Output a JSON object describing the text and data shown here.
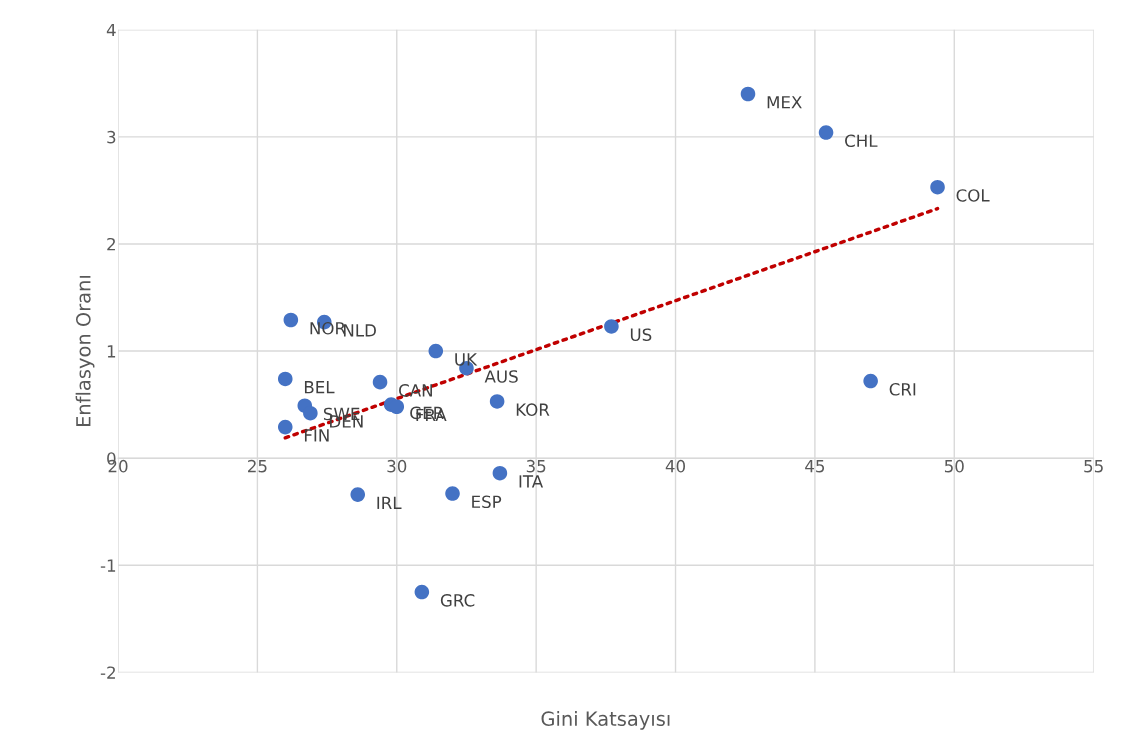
{
  "chart_data": {
    "type": "scatter",
    "xlabel": "Gini Katsayısı",
    "ylabel": "Enflasyon Oranı",
    "xlim": [
      20,
      55
    ],
    "xticks": [
      20,
      25,
      30,
      35,
      40,
      45,
      50,
      55
    ],
    "ylim": [
      -2,
      4
    ],
    "yticks": [
      -2,
      -1,
      0,
      1,
      2,
      3,
      4
    ],
    "grid": true,
    "marker": "circle",
    "series": [
      {
        "color": "#4472c4",
        "x": [
          42.6,
          45.4,
          49.4,
          37.7,
          47.0,
          26.2,
          27.4,
          31.4,
          32.5,
          26.0,
          29.4,
          33.6,
          29.8,
          30.0,
          26.7,
          26.9,
          26.0,
          33.7,
          28.6,
          32.0,
          30.9
        ],
        "values": [
          3.4,
          3.04,
          2.53,
          1.23,
          0.72,
          1.29,
          1.27,
          1.0,
          0.84,
          0.74,
          0.71,
          0.53,
          0.5,
          0.48,
          0.49,
          0.42,
          0.29,
          -0.14,
          -0.34,
          -0.33,
          -1.25
        ]
      },
      {
        "type": "line",
        "color": "#c00000",
        "line_style": "dotted",
        "marker": "none",
        "x": [
          26.0,
          49.4
        ],
        "values": [
          0.19,
          2.33
        ]
      }
    ],
    "annotations": [
      {
        "text": "MEX",
        "x": 42.6,
        "y": 3.4
      },
      {
        "text": "CHL",
        "x": 45.4,
        "y": 3.04
      },
      {
        "text": "COL",
        "x": 49.4,
        "y": 2.53
      },
      {
        "text": "US",
        "x": 37.7,
        "y": 1.23
      },
      {
        "text": "CRI",
        "x": 47.0,
        "y": 0.72
      },
      {
        "text": "NOR",
        "x": 26.2,
        "y": 1.29
      },
      {
        "text": "NLD",
        "x": 27.4,
        "y": 1.27
      },
      {
        "text": "UK",
        "x": 31.4,
        "y": 1.0
      },
      {
        "text": "AUS",
        "x": 32.5,
        "y": 0.84
      },
      {
        "text": "BEL",
        "x": 26.0,
        "y": 0.74
      },
      {
        "text": "CAN",
        "x": 29.4,
        "y": 0.71
      },
      {
        "text": "KOR",
        "x": 33.6,
        "y": 0.53
      },
      {
        "text": "GER",
        "x": 29.8,
        "y": 0.5
      },
      {
        "text": "FRA",
        "x": 30.0,
        "y": 0.48
      },
      {
        "text": "SWE",
        "x": 26.7,
        "y": 0.49
      },
      {
        "text": "DEN",
        "x": 26.9,
        "y": 0.42
      },
      {
        "text": "FIN",
        "x": 26.0,
        "y": 0.29
      },
      {
        "text": "ITA",
        "x": 33.7,
        "y": -0.14
      },
      {
        "text": "IRL",
        "x": 28.6,
        "y": -0.34
      },
      {
        "text": "ESP",
        "x": 32.0,
        "y": -0.33
      },
      {
        "text": "GRC",
        "x": 30.9,
        "y": -1.25
      }
    ]
  }
}
